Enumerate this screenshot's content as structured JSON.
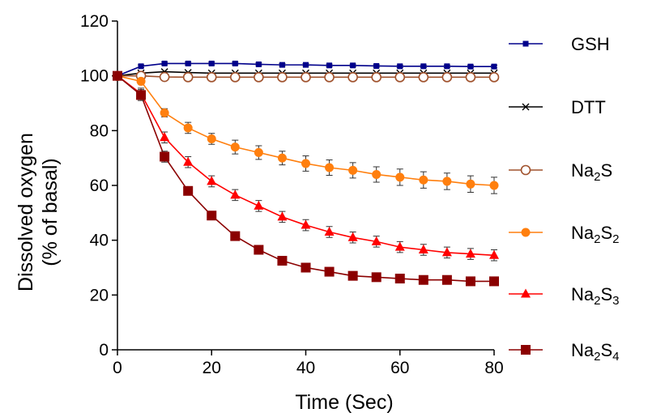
{
  "chart_data": {
    "type": "line",
    "title": "",
    "xlabel": "Time (Sec)",
    "ylabel_line1": "Dissolved  oxygen",
    "ylabel_line2": "(% of basal)",
    "xlim": [
      0,
      80
    ],
    "ylim": [
      0,
      120
    ],
    "xticks": [
      0,
      20,
      40,
      60,
      80
    ],
    "yticks": [
      0,
      20,
      40,
      60,
      80,
      100,
      120
    ],
    "grid": false,
    "legend_position": "right",
    "x": [
      0,
      5,
      10,
      15,
      20,
      25,
      30,
      35,
      40,
      45,
      50,
      55,
      60,
      65,
      70,
      75,
      80
    ],
    "series": [
      {
        "name": "GSH",
        "legend_main": "GSH",
        "legend_sub": "",
        "legend_tail": "",
        "legend_sub2": "",
        "color": "#00008B",
        "marker": "square-small",
        "values": [
          100,
          103.5,
          104.5,
          104.5,
          104.5,
          104.5,
          104.2,
          104,
          104,
          103.8,
          103.8,
          103.6,
          103.5,
          103.5,
          103.5,
          103.4,
          103.4
        ],
        "errors": [
          0,
          0.5,
          0.5,
          0.5,
          0.5,
          0.5,
          0.5,
          0.5,
          0.5,
          0.5,
          0.5,
          0.5,
          0.5,
          0.5,
          0.5,
          0.5,
          0.5
        ]
      },
      {
        "name": "DTT",
        "legend_main": "DTT",
        "legend_sub": "",
        "legend_tail": "",
        "legend_sub2": "",
        "color": "#000000",
        "marker": "x",
        "values": [
          100,
          101,
          101.5,
          101.2,
          101,
          101,
          101,
          101,
          101,
          101,
          101,
          101,
          101,
          101,
          101,
          101,
          101
        ],
        "errors": [
          0,
          0,
          0,
          0,
          0,
          0,
          0,
          0,
          0,
          0,
          0,
          0,
          0,
          0,
          0,
          0,
          0
        ]
      },
      {
        "name": "Na2S",
        "legend_main": "Na",
        "legend_sub": "2",
        "legend_tail": "S",
        "legend_sub2": "",
        "color": "#A0522D",
        "marker": "circle-open",
        "values": [
          100,
          100,
          99.6,
          99.5,
          99.5,
          99.5,
          99.5,
          99.5,
          99.5,
          99.5,
          99.5,
          99.5,
          99.5,
          99.5,
          99.5,
          99.5,
          99.5
        ],
        "errors": [
          0,
          0,
          0,
          0,
          0,
          0,
          0,
          0,
          0,
          0,
          0,
          0,
          0,
          0,
          0,
          0,
          0
        ]
      },
      {
        "name": "Na2S2",
        "legend_main": "Na",
        "legend_sub": "2",
        "legend_tail": "S",
        "legend_sub2": "2",
        "color": "#FF7F0E",
        "marker": "circle",
        "values": [
          100,
          98,
          86.5,
          81,
          77,
          74,
          72,
          70,
          68,
          66.5,
          65.5,
          64,
          63,
          62,
          61.5,
          60.5,
          60
        ],
        "errors": [
          0,
          1,
          1.5,
          2,
          2,
          2.5,
          2.5,
          2.5,
          2.8,
          2.8,
          2.8,
          2.8,
          3,
          3,
          3,
          3,
          3
        ]
      },
      {
        "name": "Na2S3",
        "legend_main": "Na",
        "legend_sub": "2",
        "legend_tail": "S",
        "legend_sub2": "3",
        "color": "#FF0000",
        "marker": "triangle",
        "values": [
          100,
          93.5,
          77.5,
          68.5,
          61.5,
          56.5,
          52.5,
          48.5,
          45.5,
          43,
          41,
          39.5,
          37.5,
          36.5,
          35.5,
          35,
          34.5
        ],
        "errors": [
          0,
          2,
          2,
          2,
          2,
          2,
          2,
          2,
          2,
          2,
          2,
          2,
          2,
          2,
          2,
          2,
          2
        ]
      },
      {
        "name": "Na2S4",
        "legend_main": "Na",
        "legend_sub": "2",
        "legend_tail": "S",
        "legend_sub2": "4",
        "color": "#8B0000",
        "marker": "square",
        "values": [
          100,
          93,
          70.5,
          58,
          49,
          41.5,
          36.5,
          32.5,
          30,
          28.5,
          27,
          26.5,
          26,
          25.5,
          25.5,
          25,
          25
        ],
        "errors": [
          0,
          2,
          2,
          0,
          0,
          0,
          0,
          0,
          0,
          0,
          0,
          0,
          0,
          0,
          0,
          0,
          0
        ]
      }
    ]
  }
}
